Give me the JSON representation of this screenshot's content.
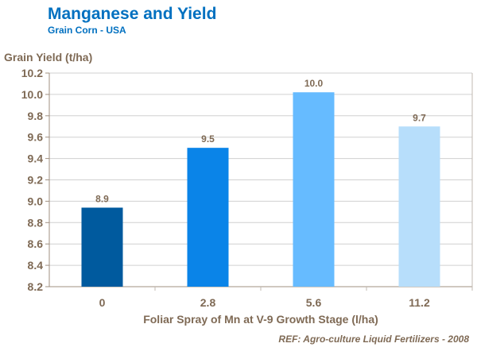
{
  "chart_data": {
    "type": "bar",
    "title": "Manganese and Yield",
    "subtitle": "Grain Corn - USA",
    "xlabel": "Foliar Spray of Mn at V-9 Growth Stage (l/ha)",
    "ylabel": "Grain Yield (t/ha)",
    "categories": [
      "0",
      "2.8",
      "5.6",
      "11.2"
    ],
    "values": [
      8.94,
      9.5,
      10.02,
      9.7
    ],
    "data_labels": [
      "8.9",
      "9.5",
      "10.0",
      "9.7"
    ],
    "colors": [
      "#005a9e",
      "#0a84e8",
      "#66bbff",
      "#b7defb"
    ],
    "ylim": [
      8.2,
      10.2
    ],
    "yticks": [
      "8.2",
      "8.4",
      "8.6",
      "8.8",
      "9.0",
      "9.2",
      "9.4",
      "9.6",
      "9.8",
      "10.0",
      "10.2"
    ],
    "grid": true,
    "legend": "none",
    "footnote": "REF: Agro-culture  Liquid Fertilizers - 2008"
  }
}
